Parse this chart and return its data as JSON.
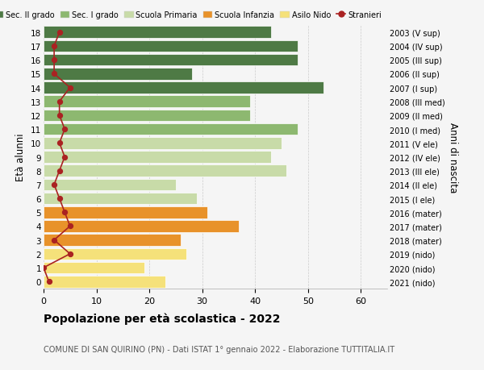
{
  "ages": [
    0,
    1,
    2,
    3,
    4,
    5,
    6,
    7,
    8,
    9,
    10,
    11,
    12,
    13,
    14,
    15,
    16,
    17,
    18
  ],
  "years": [
    "2021 (nido)",
    "2020 (nido)",
    "2019 (nido)",
    "2018 (mater)",
    "2017 (mater)",
    "2016 (mater)",
    "2015 (I ele)",
    "2014 (II ele)",
    "2013 (III ele)",
    "2012 (IV ele)",
    "2011 (V ele)",
    "2010 (I med)",
    "2009 (II med)",
    "2008 (III med)",
    "2007 (I sup)",
    "2006 (II sup)",
    "2005 (III sup)",
    "2004 (IV sup)",
    "2003 (V sup)"
  ],
  "bar_values": [
    23,
    19,
    27,
    26,
    37,
    31,
    29,
    25,
    46,
    43,
    45,
    48,
    39,
    39,
    53,
    28,
    48,
    48,
    43
  ],
  "bar_colors": [
    "#f5e17a",
    "#f5e17a",
    "#f5e17a",
    "#e8922a",
    "#e8922a",
    "#e8922a",
    "#c8dba8",
    "#c8dba8",
    "#c8dba8",
    "#c8dba8",
    "#c8dba8",
    "#8db870",
    "#8db870",
    "#8db870",
    "#4e7a45",
    "#4e7a45",
    "#4e7a45",
    "#4e7a45",
    "#4e7a45"
  ],
  "stranieri_values": [
    1,
    0,
    5,
    2,
    5,
    4,
    3,
    2,
    3,
    4,
    3,
    4,
    3,
    3,
    5,
    2,
    2,
    2,
    3
  ],
  "title_bold": "Popolazione per età scolastica - 2022",
  "subtitle": "COMUNE DI SAN QUIRINO (PN) - Dati ISTAT 1° gennaio 2022 - Elaborazione TUTTITALIA.IT",
  "ylabel": "Età alunni",
  "right_ylabel": "Anni di nascita",
  "xlim": [
    0,
    65
  ],
  "xticks": [
    0,
    10,
    20,
    30,
    40,
    50,
    60
  ],
  "legend_labels": [
    "Sec. II grado",
    "Sec. I grado",
    "Scuola Primaria",
    "Scuola Infanzia",
    "Asilo Nido",
    "Stranieri"
  ],
  "legend_colors": [
    "#4e7a45",
    "#8db870",
    "#c8dba8",
    "#e8922a",
    "#f5e17a",
    "#aa2222"
  ],
  "background_color": "#f5f5f5",
  "bar_height": 0.85,
  "title_fontsize": 10,
  "subtitle_fontsize": 7
}
